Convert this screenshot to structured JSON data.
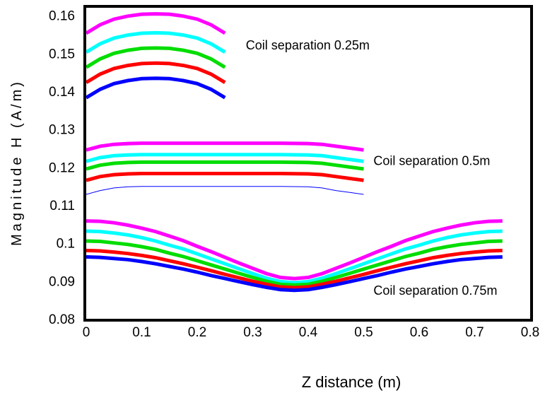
{
  "chart_data": {
    "type": "line",
    "xlabel": "Z distance (m)",
    "ylabel": "Magnitude H (A/m)",
    "xlim": [
      0,
      0.8
    ],
    "ylim": [
      0.08,
      0.162
    ],
    "x_ticks": [
      "0",
      "0.1",
      "0.2",
      "0.3",
      "0.4",
      "0.5",
      "0.6",
      "0.7",
      "0.8"
    ],
    "y_ticks": [
      "0.08",
      "0.09",
      "0.1",
      "0.11",
      "0.12",
      "0.13",
      "0.14",
      "0.15",
      "0.16"
    ],
    "grid": false,
    "annotations": [
      {
        "text": "Coil separation 0.25m",
        "x": 0.28,
        "y": 0.151
      },
      {
        "text": "Coil separation 0.5m",
        "x": 0.51,
        "y": 0.1205
      },
      {
        "text": "Coil separation 0.75m",
        "x": 0.51,
        "y": 0.0863
      }
    ],
    "groups": [
      {
        "label": "Coil separation 0.25m",
        "x": [
          0,
          0.025,
          0.05,
          0.075,
          0.1,
          0.125,
          0.15,
          0.175,
          0.2,
          0.225,
          0.25
        ],
        "series": [
          {
            "color": "#ff00ff",
            "values": [
              0.1553,
              0.1575,
              0.159,
              0.1598,
              0.1603,
              0.1604,
              0.1603,
              0.1598,
              0.159,
              0.1575,
              0.1553
            ]
          },
          {
            "color": "#00ffff",
            "values": [
              0.1503,
              0.1525,
              0.154,
              0.1548,
              0.1553,
              0.1554,
              0.1553,
              0.1548,
              0.154,
              0.1525,
              0.1503
            ]
          },
          {
            "color": "#00dd00",
            "values": [
              0.1463,
              0.1485,
              0.15,
              0.1508,
              0.1513,
              0.1514,
              0.1513,
              0.1508,
              0.15,
              0.1485,
              0.1463
            ]
          },
          {
            "color": "#ff0000",
            "values": [
              0.1423,
              0.1445,
              0.146,
              0.1468,
              0.1473,
              0.1474,
              0.1473,
              0.1468,
              0.146,
              0.1445,
              0.1423
            ]
          },
          {
            "color": "#0000ff",
            "values": [
              0.1383,
              0.1405,
              0.142,
              0.1428,
              0.1433,
              0.1434,
              0.1433,
              0.1428,
              0.142,
              0.1405,
              0.1383
            ]
          }
        ]
      },
      {
        "label": "Coil separation 0.5m",
        "x": [
          0,
          0.025,
          0.05,
          0.075,
          0.1,
          0.15,
          0.2,
          0.25,
          0.3,
          0.35,
          0.4,
          0.425,
          0.45,
          0.475,
          0.5
        ],
        "series": [
          {
            "color": "#ff00ff",
            "values": [
              0.1245,
              0.1255,
              0.126,
              0.1262,
              0.1263,
              0.1263,
              0.1263,
              0.1263,
              0.1263,
              0.1263,
              0.1262,
              0.126,
              0.1255,
              0.125,
              0.1245
            ]
          },
          {
            "color": "#00ffff",
            "values": [
              0.1215,
              0.1225,
              0.123,
              0.1232,
              0.1233,
              0.1233,
              0.1233,
              0.1233,
              0.1233,
              0.1233,
              0.1232,
              0.123,
              0.1225,
              0.122,
              0.1215
            ]
          },
          {
            "color": "#00dd00",
            "values": [
              0.1195,
              0.1205,
              0.121,
              0.1212,
              0.1213,
              0.1213,
              0.1213,
              0.1213,
              0.1213,
              0.1213,
              0.1212,
              0.121,
              0.1205,
              0.12,
              0.1195
            ]
          },
          {
            "color": "#ff0000",
            "values": [
              0.1165,
              0.1175,
              0.118,
              0.1182,
              0.1183,
              0.1183,
              0.1183,
              0.1183,
              0.1183,
              0.1183,
              0.1182,
              0.118,
              0.1175,
              0.117,
              0.1165
            ]
          },
          {
            "color": "#0000ff",
            "width": 1,
            "values": [
              0.1128,
              0.1138,
              0.1145,
              0.1148,
              0.1149,
              0.1149,
              0.1149,
              0.1149,
              0.1149,
              0.1149,
              0.1148,
              0.1145,
              0.1138,
              0.1133,
              0.1128
            ]
          }
        ]
      },
      {
        "label": "Coil separation 0.75m",
        "x": [
          0,
          0.025,
          0.05,
          0.075,
          0.1,
          0.125,
          0.15,
          0.175,
          0.2,
          0.225,
          0.25,
          0.275,
          0.3,
          0.325,
          0.35,
          0.375,
          0.4,
          0.425,
          0.45,
          0.475,
          0.5,
          0.525,
          0.55,
          0.575,
          0.6,
          0.625,
          0.65,
          0.675,
          0.7,
          0.725,
          0.75
        ],
        "series": [
          {
            "color": "#ff00ff",
            "values": [
              0.1058,
              0.1057,
              0.1053,
              0.1047,
              0.1039,
              0.103,
              0.1018,
              0.1006,
              0.0991,
              0.0977,
              0.0962,
              0.0947,
              0.0933,
              0.0919,
              0.0909,
              0.0906,
              0.0909,
              0.0919,
              0.0933,
              0.0947,
              0.0962,
              0.0977,
              0.0991,
              0.1006,
              0.1018,
              0.103,
              0.1039,
              0.1047,
              0.1053,
              0.1057,
              0.1058
            ]
          },
          {
            "color": "#00ffff",
            "values": [
              0.1031,
              0.103,
              0.1026,
              0.1021,
              0.1014,
              0.1005,
              0.0994,
              0.0984,
              0.0971,
              0.0958,
              0.0945,
              0.0932,
              0.0919,
              0.0907,
              0.0898,
              0.0895,
              0.0898,
              0.0907,
              0.0919,
              0.0932,
              0.0945,
              0.0958,
              0.0971,
              0.0984,
              0.0994,
              0.1005,
              0.1014,
              0.1021,
              0.1026,
              0.103,
              0.1031
            ]
          },
          {
            "color": "#00dd00",
            "values": [
              0.1005,
              0.1004,
              0.1,
              0.0996,
              0.099,
              0.0983,
              0.0973,
              0.0964,
              0.0953,
              0.0942,
              0.0931,
              0.092,
              0.0909,
              0.0899,
              0.0891,
              0.0889,
              0.0891,
              0.0899,
              0.0909,
              0.092,
              0.0931,
              0.0942,
              0.0953,
              0.0964,
              0.0973,
              0.0983,
              0.099,
              0.0996,
              0.1,
              0.1004,
              0.1005
            ]
          },
          {
            "color": "#ff0000",
            "values": [
              0.098,
              0.0979,
              0.0976,
              0.0972,
              0.0967,
              0.0961,
              0.0953,
              0.0945,
              0.0936,
              0.0927,
              0.0917,
              0.0908,
              0.0899,
              0.0891,
              0.0884,
              0.0882,
              0.0884,
              0.0891,
              0.0899,
              0.0908,
              0.0917,
              0.0927,
              0.0936,
              0.0945,
              0.0953,
              0.0961,
              0.0967,
              0.0972,
              0.0976,
              0.0979,
              0.098
            ]
          },
          {
            "color": "#0000ff",
            "values": [
              0.0963,
              0.0962,
              0.0959,
              0.0956,
              0.0951,
              0.0945,
              0.0938,
              0.0931,
              0.0923,
              0.0914,
              0.0906,
              0.0898,
              0.089,
              0.0883,
              0.0877,
              0.0875,
              0.0877,
              0.0883,
              0.089,
              0.0898,
              0.0906,
              0.0914,
              0.0923,
              0.0931,
              0.0938,
              0.0945,
              0.0951,
              0.0956,
              0.0959,
              0.0962,
              0.0963
            ]
          }
        ]
      }
    ]
  }
}
